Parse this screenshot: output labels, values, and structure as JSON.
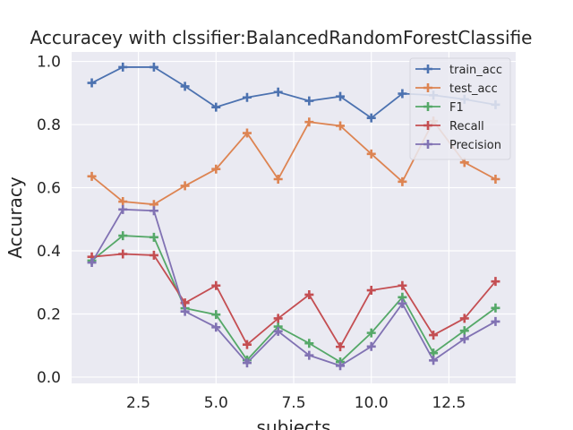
{
  "chart_data": {
    "type": "line",
    "title": "Accuracey with clssifier:BalancedRandomForestClassifie",
    "xlabel": "subjects",
    "ylabel": "Accuracy",
    "x": [
      1,
      2,
      3,
      4,
      5,
      6,
      7,
      8,
      9,
      10,
      11,
      12,
      13,
      14
    ],
    "xlim": [
      0.35,
      14.65
    ],
    "ylim": [
      -0.02,
      1.03
    ],
    "xticks": [
      2.5,
      5.0,
      7.5,
      10.0,
      12.5
    ],
    "xtick_labels": [
      "2.5",
      "5.0",
      "7.5",
      "10.0",
      "12.5"
    ],
    "yticks": [
      0.0,
      0.2,
      0.4,
      0.6,
      0.8,
      1.0
    ],
    "ytick_labels": [
      "0.0",
      "0.2",
      "0.4",
      "0.6",
      "0.8",
      "1.0"
    ],
    "grid": true,
    "legend_position": "top-right",
    "series": [
      {
        "name": "train_acc",
        "color": "#4c72b0",
        "values": [
          0.932,
          0.982,
          0.982,
          0.921,
          0.855,
          0.886,
          0.903,
          0.875,
          0.889,
          0.821,
          0.898,
          0.893,
          0.88,
          0.863
        ]
      },
      {
        "name": "test_acc",
        "color": "#dd8452",
        "values": [
          0.636,
          0.556,
          0.547,
          0.606,
          0.659,
          0.773,
          0.627,
          0.808,
          0.796,
          0.707,
          0.619,
          0.811,
          0.68,
          0.627
        ]
      },
      {
        "name": "F1",
        "color": "#55a868",
        "values": [
          0.369,
          0.448,
          0.443,
          0.218,
          0.198,
          0.054,
          0.16,
          0.107,
          0.048,
          0.14,
          0.253,
          0.076,
          0.147,
          0.219
        ]
      },
      {
        "name": "Recall",
        "color": "#c44e52",
        "values": [
          0.381,
          0.39,
          0.386,
          0.235,
          0.29,
          0.103,
          0.186,
          0.261,
          0.096,
          0.275,
          0.29,
          0.133,
          0.186,
          0.303
        ]
      },
      {
        "name": "Precision",
        "color": "#8172b3",
        "values": [
          0.363,
          0.531,
          0.527,
          0.208,
          0.158,
          0.045,
          0.145,
          0.069,
          0.036,
          0.097,
          0.233,
          0.053,
          0.121,
          0.176
        ]
      }
    ]
  }
}
